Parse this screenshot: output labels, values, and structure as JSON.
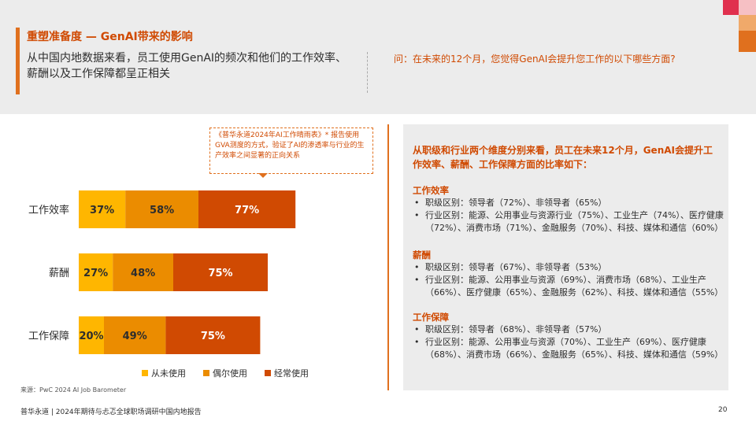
{
  "header": {
    "title": "重塑准备度 — GenAI带来的影响",
    "subtitle": "从中国内地数据来看，员工使用GenAI的频次和他们的工作效率、薪酬以及工作保障都呈正相关",
    "question": "问：在未来的12个月，您觉得GenAI会提升您工作的以下哪些方面?"
  },
  "note": "《普华永道2024年AI工作晴雨表》* 报告使用GVA测度的方式，验证了AI的渗透率与行业的生产效率之间显著的正向关系",
  "chart_data": {
    "type": "bar",
    "orientation": "horizontal",
    "stacked": true,
    "categories": [
      "工作效率",
      "薪酬",
      "工作保障"
    ],
    "series": [
      {
        "name": "从未使用",
        "values": [
          37,
          27,
          20
        ],
        "color": "#ffb600"
      },
      {
        "name": "偶尔使用",
        "values": [
          58,
          48,
          49
        ],
        "color": "#eb8c00"
      },
      {
        "name": "经常使用",
        "values": [
          77,
          75,
          75
        ],
        "color": "#d04a02"
      }
    ],
    "value_suffix": "%",
    "legend_position": "bottom"
  },
  "source": "来源：PwC 2024 AI Job Barometer",
  "panel": {
    "intro": "从职级和行业两个维度分别来看，员工在未来12个月，GenAI会提升工作效率、薪酬、工作保障方面的比率如下：",
    "blocks": [
      {
        "heading": "工作效率",
        "items": [
          "职级区别：领导者（72%）、非领导者（65%）",
          "行业区别：能源、公用事业与资源行业（75%）、工业生产（74%）、医疗健康（72%）、消费市场（71%）、金融服务（70%）、科技、媒体和通信（60%）"
        ]
      },
      {
        "heading": "薪酬",
        "items": [
          "职级区别：领导者（67%）、非领导者（53%）",
          "行业区别：能源、公用事业与资源（69%）、消费市场（68%）、工业生产（66%）、医疗健康（65%）、金融服务（62%）、科技、媒体和通信（55%）"
        ]
      },
      {
        "heading": "工作保障",
        "items": [
          "职级区别：领导者（68%）、非领导者（57%）",
          "行业区别：能源、公用事业与资源（70%）、工业生产（69%）、医疗健康（68%）、消费市场（66%）、金融服务（65%）、科技、媒体和通信（59%）"
        ]
      }
    ]
  },
  "footer": {
    "text": "普华永道 | 2024年期待与忐忑全球职场调研中国内地报告",
    "page": "20"
  }
}
